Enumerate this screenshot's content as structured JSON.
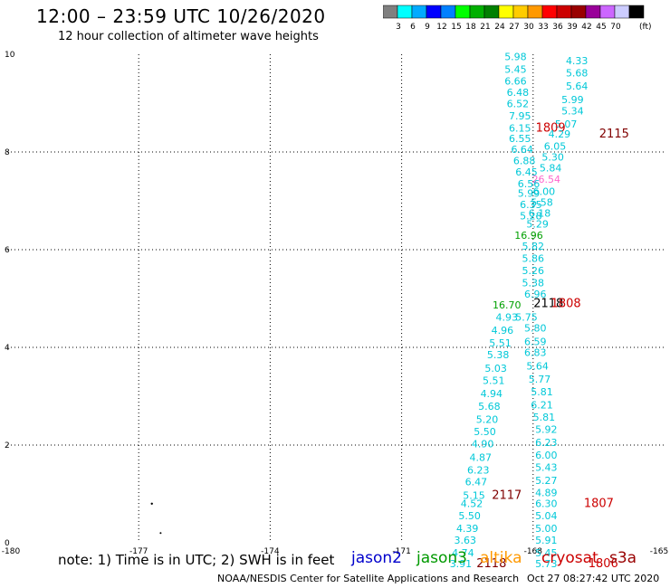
{
  "header": {
    "title": "12:00 – 23:59 UTC 10/26/2020",
    "subtitle": "12 hour collection of altimeter wave heights"
  },
  "colorbar": {
    "labels": [
      "3",
      "6",
      "9",
      "12",
      "15",
      "18",
      "21",
      "24",
      "27",
      "30",
      "33",
      "36",
      "39",
      "42",
      "45",
      "70"
    ],
    "unit": "(ft)",
    "colors": [
      "#808080",
      "#00ffff",
      "#00aaff",
      "#0000ff",
      "#0080ff",
      "#00ff00",
      "#00b000",
      "#008000",
      "#ffff00",
      "#ffcc00",
      "#ff9900",
      "#ff0000",
      "#cc0000",
      "#990000",
      "#990099",
      "#cc66ff",
      "#ccccff",
      "#000000"
    ]
  },
  "map": {
    "x_ticks": [
      "-180",
      "-177",
      "-174",
      "-171",
      "-168",
      "-165"
    ],
    "y_ticks": [
      "0",
      "2",
      "4",
      "6",
      "8",
      "10"
    ]
  },
  "track_labels": [
    {
      "t": "5.98",
      "c": "#00c8d8",
      "lon": -168.4,
      "lat": 9.88
    },
    {
      "t": "4.33",
      "c": "#00c8d8",
      "lon": -167.0,
      "lat": 9.8
    },
    {
      "t": "5.45",
      "c": "#00c8d8",
      "lon": -168.4,
      "lat": 9.62
    },
    {
      "t": "5.68",
      "c": "#00c8d8",
      "lon": -167.0,
      "lat": 9.55
    },
    {
      "t": "6.66",
      "c": "#00c8d8",
      "lon": -168.4,
      "lat": 9.38
    },
    {
      "t": "5.64",
      "c": "#00c8d8",
      "lon": -167.0,
      "lat": 9.28
    },
    {
      "t": "6.48",
      "c": "#00c8d8",
      "lon": -168.35,
      "lat": 9.15
    },
    {
      "t": "5.99",
      "c": "#00c8d8",
      "lon": -167.1,
      "lat": 9.0
    },
    {
      "t": "6.52",
      "c": "#00c8d8",
      "lon": -168.35,
      "lat": 8.92
    },
    {
      "t": "5.34",
      "c": "#00c8d8",
      "lon": -167.1,
      "lat": 8.77
    },
    {
      "t": "7.95",
      "c": "#00c8d8",
      "lon": -168.3,
      "lat": 8.67
    },
    {
      "t": "5.07",
      "c": "#00c8d8",
      "lon": -167.25,
      "lat": 8.5
    },
    {
      "t": "6.15",
      "c": "#00c8d8",
      "lon": -168.3,
      "lat": 8.42
    },
    {
      "t": "1809",
      "c": "#cc0000",
      "lon": -167.6,
      "lat": 8.42
    },
    {
      "t": "2115",
      "c": "#800000",
      "lon": -166.15,
      "lat": 8.3
    },
    {
      "t": "4.29",
      "c": "#00c8d8",
      "lon": -167.4,
      "lat": 8.3
    },
    {
      "t": "6.55",
      "c": "#00c8d8",
      "lon": -168.3,
      "lat": 8.2
    },
    {
      "t": "6.05",
      "c": "#00c8d8",
      "lon": -167.5,
      "lat": 8.05
    },
    {
      "t": "6.64",
      "c": "#00c8d8",
      "lon": -168.25,
      "lat": 7.98
    },
    {
      "t": "5.30",
      "c": "#00c8d8",
      "lon": -167.55,
      "lat": 7.82
    },
    {
      "t": "6.88",
      "c": "#00c8d8",
      "lon": -168.2,
      "lat": 7.75
    },
    {
      "t": "5.84",
      "c": "#00c8d8",
      "lon": -167.6,
      "lat": 7.6
    },
    {
      "t": "6.45",
      "c": "#00c8d8",
      "lon": -168.15,
      "lat": 7.52
    },
    {
      "t": "26.54",
      "c": "#ff66cc",
      "lon": -167.7,
      "lat": 7.37
    },
    {
      "t": "6.56",
      "c": "#00c8d8",
      "lon": -168.1,
      "lat": 7.28
    },
    {
      "t": "6.00",
      "c": "#00c8d8",
      "lon": -167.75,
      "lat": 7.12
    },
    {
      "t": "5.99",
      "c": "#00c8d8",
      "lon": -168.1,
      "lat": 7.08
    },
    {
      "t": "5.58",
      "c": "#00c8d8",
      "lon": -167.8,
      "lat": 6.9
    },
    {
      "t": "6.35",
      "c": "#00c8d8",
      "lon": -168.05,
      "lat": 6.85
    },
    {
      "t": "6.18",
      "c": "#00c8d8",
      "lon": -167.85,
      "lat": 6.68
    },
    {
      "t": "5.28",
      "c": "#00c8d8",
      "lon": -168.05,
      "lat": 6.62
    },
    {
      "t": "5.29",
      "c": "#00c8d8",
      "lon": -167.9,
      "lat": 6.45
    },
    {
      "t": "16.96",
      "c": "#00a000",
      "lon": -168.1,
      "lat": 6.22
    },
    {
      "t": "5.82",
      "c": "#00c8d8",
      "lon": -168.0,
      "lat": 6.0
    },
    {
      "t": "5.86",
      "c": "#00c8d8",
      "lon": -168.0,
      "lat": 5.75
    },
    {
      "t": "5.26",
      "c": "#00c8d8",
      "lon": -168.0,
      "lat": 5.5
    },
    {
      "t": "5.38",
      "c": "#00c8d8",
      "lon": -168.0,
      "lat": 5.25
    },
    {
      "t": "6.96",
      "c": "#00c8d8",
      "lon": -167.95,
      "lat": 5.02
    },
    {
      "t": "16.70",
      "c": "#00a000",
      "lon": -168.6,
      "lat": 4.8
    },
    {
      "t": "2118",
      "c": "#000000",
      "lon": -167.65,
      "lat": 4.82
    },
    {
      "t": "1808",
      "c": "#cc0000",
      "lon": -167.25,
      "lat": 4.82
    },
    {
      "t": "4.93",
      "c": "#00c8d8",
      "lon": -168.6,
      "lat": 4.55
    },
    {
      "t": "5.75",
      "c": "#00c8d8",
      "lon": -168.15,
      "lat": 4.55
    },
    {
      "t": "4.96",
      "c": "#00c8d8",
      "lon": -168.7,
      "lat": 4.28
    },
    {
      "t": "5.80",
      "c": "#00c8d8",
      "lon": -167.95,
      "lat": 4.32
    },
    {
      "t": "5.51",
      "c": "#00c8d8",
      "lon": -168.75,
      "lat": 4.02
    },
    {
      "t": "6.59",
      "c": "#00c8d8",
      "lon": -167.95,
      "lat": 4.05
    },
    {
      "t": "5.38",
      "c": "#00c8d8",
      "lon": -168.8,
      "lat": 3.78
    },
    {
      "t": "6.83",
      "c": "#00c8d8",
      "lon": -167.95,
      "lat": 3.82
    },
    {
      "t": "5.03",
      "c": "#00c8d8",
      "lon": -168.85,
      "lat": 3.5
    },
    {
      "t": "5.64",
      "c": "#00c8d8",
      "lon": -167.9,
      "lat": 3.55
    },
    {
      "t": "5.51",
      "c": "#00c8d8",
      "lon": -168.9,
      "lat": 3.25
    },
    {
      "t": "5.77",
      "c": "#00c8d8",
      "lon": -167.85,
      "lat": 3.28
    },
    {
      "t": "4.94",
      "c": "#00c8d8",
      "lon": -168.95,
      "lat": 2.98
    },
    {
      "t": "5.81",
      "c": "#00c8d8",
      "lon": -167.8,
      "lat": 3.02
    },
    {
      "t": "5.68",
      "c": "#00c8d8",
      "lon": -169.0,
      "lat": 2.72
    },
    {
      "t": "6.21",
      "c": "#00c8d8",
      "lon": -167.8,
      "lat": 2.75
    },
    {
      "t": "5.20",
      "c": "#00c8d8",
      "lon": -169.05,
      "lat": 2.45
    },
    {
      "t": "5.81",
      "c": "#00c8d8",
      "lon": -167.75,
      "lat": 2.5
    },
    {
      "t": "5.50",
      "c": "#00c8d8",
      "lon": -169.1,
      "lat": 2.2
    },
    {
      "t": "5.92",
      "c": "#00c8d8",
      "lon": -167.7,
      "lat": 2.25
    },
    {
      "t": "4.90",
      "c": "#00c8d8",
      "lon": -169.15,
      "lat": 1.95
    },
    {
      "t": "6.23",
      "c": "#00c8d8",
      "lon": -167.7,
      "lat": 1.98
    },
    {
      "t": "4.87",
      "c": "#00c8d8",
      "lon": -169.2,
      "lat": 1.68
    },
    {
      "t": "6.00",
      "c": "#00c8d8",
      "lon": -167.7,
      "lat": 1.72
    },
    {
      "t": "6.23",
      "c": "#00c8d8",
      "lon": -169.25,
      "lat": 1.42
    },
    {
      "t": "5.43",
      "c": "#00c8d8",
      "lon": -167.7,
      "lat": 1.47
    },
    {
      "t": "6.47",
      "c": "#00c8d8",
      "lon": -169.3,
      "lat": 1.18
    },
    {
      "t": "5.27",
      "c": "#00c8d8",
      "lon": -167.7,
      "lat": 1.2
    },
    {
      "t": "5.15",
      "c": "#00c8d8",
      "lon": -169.35,
      "lat": 0.9
    },
    {
      "t": "2117",
      "c": "#800000",
      "lon": -168.6,
      "lat": 0.9
    },
    {
      "t": "4.89",
      "c": "#00c8d8",
      "lon": -167.7,
      "lat": 0.95
    },
    {
      "t": "4.52",
      "c": "#00c8d8",
      "lon": -169.4,
      "lat": 0.73
    },
    {
      "t": "6.30",
      "c": "#00c8d8",
      "lon": -167.7,
      "lat": 0.73
    },
    {
      "t": "1807",
      "c": "#cc0000",
      "lon": -166.5,
      "lat": 0.73
    },
    {
      "t": "5.50",
      "c": "#00c8d8",
      "lon": -169.45,
      "lat": 0.48
    },
    {
      "t": "5.04",
      "c": "#00c8d8",
      "lon": -167.7,
      "lat": 0.48
    },
    {
      "t": "4.39",
      "c": "#00c8d8",
      "lon": -169.5,
      "lat": 0.22
    },
    {
      "t": "5.00",
      "c": "#00c8d8",
      "lon": -167.7,
      "lat": 0.22
    },
    {
      "t": "3.63",
      "c": "#00c8d8",
      "lon": -169.55,
      "lat": -0.02
    },
    {
      "t": "5.91",
      "c": "#00c8d8",
      "lon": -167.7,
      "lat": -0.02
    },
    {
      "t": "4.74",
      "c": "#00c8d8",
      "lon": -169.6,
      "lat": -0.28
    },
    {
      "t": "5.45",
      "c": "#00c8d8",
      "lon": -167.7,
      "lat": -0.28
    },
    {
      "t": "3.91",
      "c": "#00c8d8",
      "lon": -169.65,
      "lat": -0.5
    },
    {
      "t": "2118",
      "c": "#800000",
      "lon": -168.95,
      "lat": -0.5
    },
    {
      "t": "5.73",
      "c": "#00c8d8",
      "lon": -167.7,
      "lat": -0.5
    },
    {
      "t": "1806",
      "c": "#cc0000",
      "lon": -166.4,
      "lat": -0.5
    }
  ],
  "note": "note:  1) Time is in UTC; 2) SWH is in feet",
  "satellites": [
    {
      "name": "jason2",
      "color": "#0000cc"
    },
    {
      "name": "jason3",
      "color": "#009900"
    },
    {
      "name": "altika",
      "color": "#ff9900"
    },
    {
      "name": "cryosat",
      "color": "#cc0000"
    },
    {
      "name": "s3a",
      "color": "#990000"
    }
  ],
  "footer": {
    "left": "NOAA/NESDIS Center for Satellite Applications and Research",
    "right": "Oct 27 08:27:42 UTC 2020"
  }
}
